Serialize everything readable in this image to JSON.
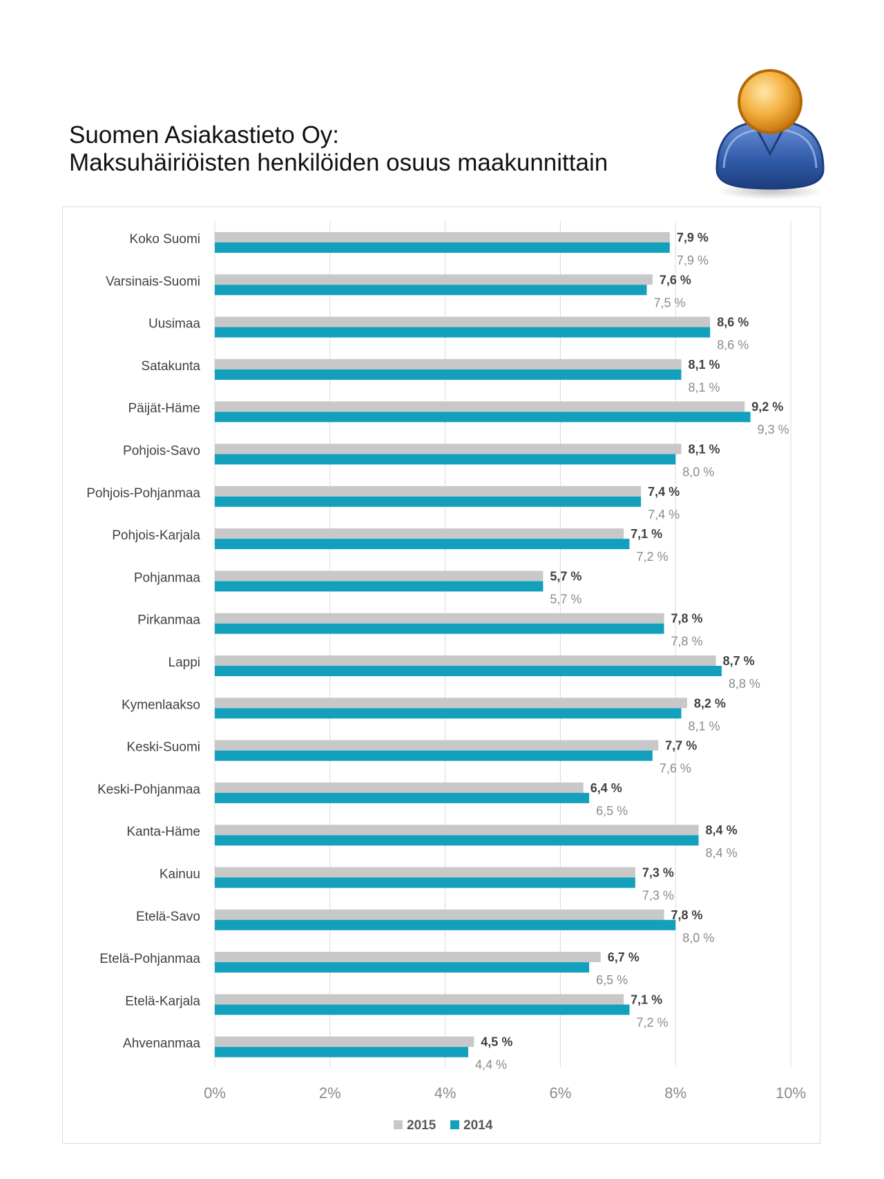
{
  "header": {
    "title_line1": "Suomen Asiakastieto Oy:",
    "title_line2": "Maksuhäiriöisten henkilöiden osuus maakunnittain"
  },
  "icons": {
    "avatar": "person-icon"
  },
  "colors": {
    "series_2015": "#c8c8c8",
    "series_2014": "#12a0bd",
    "grid": "#d9d9d9",
    "frame": "#d9d9d9"
  },
  "chart_data": {
    "type": "bar",
    "orientation": "horizontal",
    "categories": [
      "Koko Suomi",
      "Varsinais-Suomi",
      "Uusimaa",
      "Satakunta",
      "Päijät-Häme",
      "Pohjois-Savo",
      "Pohjois-Pohjanmaa",
      "Pohjois-Karjala",
      "Pohjanmaa",
      "Pirkanmaa",
      "Lappi",
      "Kymenlaakso",
      "Keski-Suomi",
      "Keski-Pohjanmaa",
      "Kanta-Häme",
      "Kainuu",
      "Etelä-Savo",
      "Etelä-Pohjanmaa",
      "Etelä-Karjala",
      "Ahvenanmaa"
    ],
    "series": [
      {
        "name": "2015",
        "values": [
          7.9,
          7.6,
          8.6,
          8.1,
          9.2,
          8.1,
          7.4,
          7.1,
          5.7,
          7.8,
          8.7,
          8.2,
          7.7,
          6.4,
          8.4,
          7.3,
          7.8,
          6.7,
          7.1,
          4.5
        ],
        "labels": [
          "7,9 %",
          "7,6 %",
          "8,6 %",
          "8,1 %",
          "9,2 %",
          "8,1 %",
          "7,4 %",
          "7,1 %",
          "5,7 %",
          "7,8 %",
          "8,7 %",
          "8,2 %",
          "7,7 %",
          "6,4 %",
          "8,4 %",
          "7,3 %",
          "7,8 %",
          "6,7 %",
          "7,1 %",
          "4,5 %"
        ]
      },
      {
        "name": "2014",
        "values": [
          7.9,
          7.5,
          8.6,
          8.1,
          9.3,
          8.0,
          7.4,
          7.2,
          5.7,
          7.8,
          8.8,
          8.1,
          7.6,
          6.5,
          8.4,
          7.3,
          8.0,
          6.5,
          7.2,
          4.4
        ],
        "labels": [
          "7,9 %",
          "7,5 %",
          "8,6 %",
          "8,1 %",
          "9,3 %",
          "8,0 %",
          "7,4 %",
          "7,2 %",
          "5,7 %",
          "7,8 %",
          "8,8 %",
          "8,1 %",
          "7,6 %",
          "6,5 %",
          "8,4 %",
          "7,3 %",
          "8,0 %",
          "6,5 %",
          "7,2 %",
          "4,4 %"
        ]
      }
    ],
    "xlim": [
      0,
      10
    ],
    "x_ticks": [
      "0%",
      "2%",
      "4%",
      "6%",
      "8%",
      "10%"
    ],
    "grid": true,
    "legend": "bottom"
  }
}
